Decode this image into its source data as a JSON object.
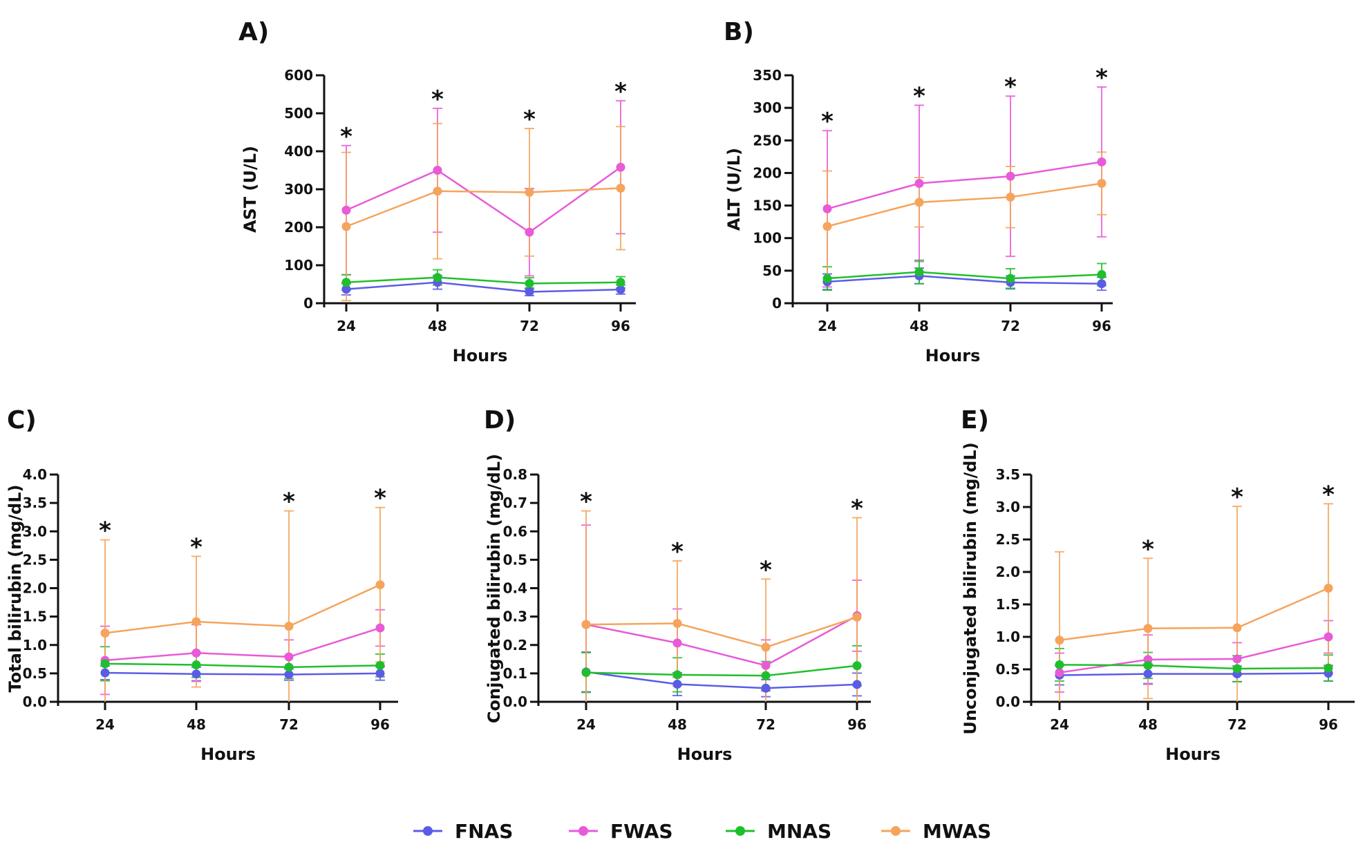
{
  "colors": {
    "FNAS": "#5b5ce6",
    "FWAS": "#e85ad8",
    "MNAS": "#1fbf2c",
    "MWAS": "#f5a45c",
    "axis": "#111111"
  },
  "legend": {
    "items": [
      "FNAS",
      "FWAS",
      "MNAS",
      "MWAS"
    ]
  },
  "chart_data": [
    {
      "panel": "A)",
      "type": "line",
      "xlabel": "Hours",
      "ylabel": "AST (U/L)",
      "categories": [
        "24",
        "48",
        "72",
        "96"
      ],
      "ylim": [
        0,
        600
      ],
      "yticks": [
        "0",
        "100",
        "200",
        "300",
        "400",
        "500",
        "600"
      ],
      "stars": [
        true,
        true,
        true,
        true
      ],
      "series": [
        {
          "name": "FNAS",
          "values": [
            37,
            55,
            30,
            36
          ],
          "err": [
            15,
            18,
            10,
            12
          ]
        },
        {
          "name": "FWAS",
          "values": [
            245,
            350,
            187,
            358
          ],
          "err": [
            170,
            163,
            115,
            175
          ]
        },
        {
          "name": "MNAS",
          "values": [
            55,
            68,
            52,
            55
          ],
          "err": [
            20,
            20,
            15,
            15
          ]
        },
        {
          "name": "MWAS",
          "values": [
            202,
            295,
            292,
            303
          ],
          "err": [
            195,
            178,
            168,
            162
          ]
        }
      ]
    },
    {
      "panel": "B)",
      "type": "line",
      "xlabel": "Hours",
      "ylabel": "ALT (U/L)",
      "categories": [
        "24",
        "48",
        "72",
        "96"
      ],
      "ylim": [
        0,
        350
      ],
      "yticks": [
        "0",
        "50",
        "100",
        "150",
        "200",
        "250",
        "300",
        "350"
      ],
      "stars": [
        true,
        true,
        true,
        true
      ],
      "series": [
        {
          "name": "FNAS",
          "values": [
            33,
            42,
            32,
            30
          ],
          "err": [
            12,
            12,
            10,
            10
          ]
        },
        {
          "name": "FWAS",
          "values": [
            145,
            184,
            195,
            217
          ],
          "err": [
            120,
            120,
            123,
            115
          ]
        },
        {
          "name": "MNAS",
          "values": [
            38,
            48,
            38,
            44
          ],
          "err": [
            18,
            18,
            15,
            17
          ]
        },
        {
          "name": "MWAS",
          "values": [
            118,
            155,
            163,
            184
          ],
          "err": [
            85,
            38,
            47,
            48
          ]
        }
      ]
    },
    {
      "panel": "C)",
      "type": "line",
      "xlabel": "Hours",
      "ylabel": "Total bilirubin (mg/dL)",
      "categories": [
        "24",
        "48",
        "72",
        "96"
      ],
      "ylim": [
        0,
        4.0
      ],
      "yticks": [
        "0.0",
        "0.5",
        "1.0",
        "1.5",
        "2.0",
        "2.5",
        "3.0",
        "3.5",
        "4.0"
      ],
      "stars": [
        true,
        true,
        true,
        true
      ],
      "series": [
        {
          "name": "FNAS",
          "values": [
            0.51,
            0.49,
            0.48,
            0.5
          ],
          "err": [
            0.12,
            0.12,
            0.1,
            0.12
          ]
        },
        {
          "name": "FWAS",
          "values": [
            0.73,
            0.86,
            0.79,
            1.3
          ],
          "err": [
            0.6,
            0.5,
            0.3,
            0.32
          ]
        },
        {
          "name": "MNAS",
          "values": [
            0.67,
            0.65,
            0.61,
            0.64
          ],
          "err": [
            0.3,
            0.22,
            0.2,
            0.2
          ]
        },
        {
          "name": "MWAS",
          "values": [
            1.21,
            1.41,
            1.33,
            2.06
          ],
          "err": [
            1.64,
            1.15,
            2.03,
            1.36
          ]
        }
      ]
    },
    {
      "panel": "D)",
      "type": "line",
      "xlabel": "Hours",
      "ylabel": "Conjugated bilirubin (mg/dL)",
      "categories": [
        "24",
        "48",
        "72",
        "96"
      ],
      "ylim": [
        0,
        0.8
      ],
      "yticks": [
        "0.0",
        "0.1",
        "0.2",
        "0.3",
        "0.4",
        "0.5",
        "0.6",
        "0.7",
        "0.8"
      ],
      "stars": [
        true,
        true,
        true,
        true
      ],
      "series": [
        {
          "name": "FNAS",
          "values": [
            0.105,
            0.062,
            0.048,
            0.061
          ],
          "err": [
            0.07,
            0.04,
            0.03,
            0.04
          ]
        },
        {
          "name": "FWAS",
          "values": [
            0.272,
            0.207,
            0.128,
            0.303
          ],
          "err": [
            0.35,
            0.12,
            0.09,
            0.125
          ]
        },
        {
          "name": "MNAS",
          "values": [
            0.103,
            0.095,
            0.092,
            0.127
          ],
          "err": [
            0.07,
            0.06,
            0.05,
            0.07
          ]
        },
        {
          "name": "MWAS",
          "values": [
            0.272,
            0.276,
            0.192,
            0.298
          ],
          "err": [
            0.4,
            0.22,
            0.24,
            0.35
          ]
        }
      ]
    },
    {
      "panel": "E)",
      "type": "line",
      "xlabel": "Hours",
      "ylabel": "Unconjugated bilirubin (mg/dL)",
      "categories": [
        "24",
        "48",
        "72",
        "96"
      ],
      "ylim": [
        0,
        3.5
      ],
      "yticks": [
        "0.0",
        "0.5",
        "1.0",
        "1.5",
        "2.0",
        "2.5",
        "3.0",
        "3.5"
      ],
      "stars": [
        false,
        true,
        true,
        true
      ],
      "series": [
        {
          "name": "FNAS",
          "values": [
            0.41,
            0.43,
            0.43,
            0.44
          ],
          "err": [
            0.15,
            0.15,
            0.12,
            0.12
          ]
        },
        {
          "name": "FWAS",
          "values": [
            0.45,
            0.65,
            0.66,
            1.0
          ],
          "err": [
            0.3,
            0.38,
            0.25,
            0.25
          ]
        },
        {
          "name": "MNAS",
          "values": [
            0.57,
            0.56,
            0.51,
            0.52
          ],
          "err": [
            0.25,
            0.2,
            0.2,
            0.2
          ]
        },
        {
          "name": "MWAS",
          "values": [
            0.95,
            1.13,
            1.14,
            1.75
          ],
          "err": [
            1.36,
            1.08,
            1.87,
            1.3
          ]
        }
      ]
    }
  ]
}
